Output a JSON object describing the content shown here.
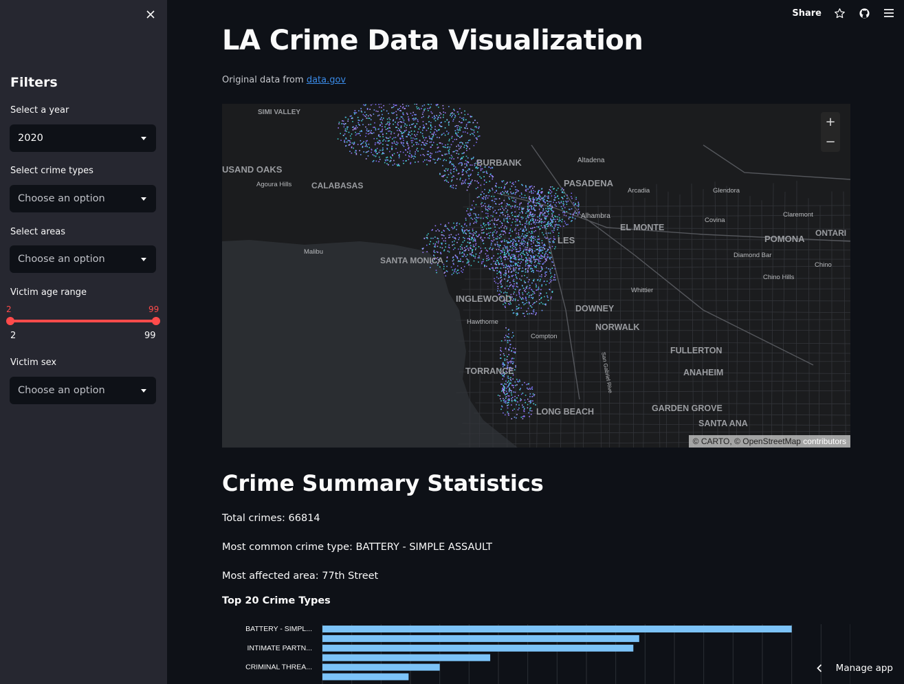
{
  "sidebar": {
    "heading": "Filters",
    "year_label": "Select a year",
    "year_value": "2020",
    "crime_types_label": "Select crime types",
    "crime_types_placeholder": "Choose an option",
    "areas_label": "Select areas",
    "areas_placeholder": "Choose an option",
    "age_label": "Victim age range",
    "age_low": "2",
    "age_high": "99",
    "age_min": "2",
    "age_max": "99",
    "sex_label": "Victim sex",
    "sex_placeholder": "Choose an option"
  },
  "toolbar": {
    "share_label": "Share"
  },
  "main": {
    "title": "LA Crime Data Visualization",
    "source_prefix": "Original data from ",
    "source_link": "data.gov",
    "stats_heading": "Crime Summary Statistics",
    "total_crimes": "Total crimes: 66814",
    "most_common": "Most common crime type: BATTERY - SIMPLE ASSAULT",
    "most_affected": "Most affected area: 77th Street",
    "chart_title": "Top 20 Crime Types"
  },
  "map": {
    "zoom_in": "+",
    "zoom_out": "−",
    "attribution_1": "© CARTO",
    "attribution_2": "© OpenStreetMap",
    "attribution_3": "contributors",
    "places": [
      "SIMI VALLEY",
      "USAND OAKS",
      "Agoura Hills",
      "CALABASAS",
      "BURBANK",
      "Altadena",
      "PASADENA",
      "Arcadia",
      "Glendora",
      "Claremont",
      "Alhambra",
      "EL MONTE",
      "Covina",
      "POMONA",
      "ONTARI",
      "LES",
      "Malibu",
      "SANTA MONICA",
      "Diamond Bar",
      "Chino",
      "Chino Hills",
      "Whittier",
      "INGLEWOOD",
      "DOWNEY",
      "Hawthorne",
      "NORWALK",
      "Compton",
      "FULLERTON",
      "TORRANCE",
      "ANAHEIM",
      "LONG BEACH",
      "GARDEN GROVE",
      "SANTA ANA",
      "San Gabriel Rive"
    ]
  },
  "chart_data": {
    "type": "bar",
    "orientation": "horizontal",
    "title": "Top 20 Crime Types",
    "categories": [
      "BATTERY - SIMPL...",
      "",
      "INTIMATE PARTN...",
      "",
      "CRIMINAL THREA...",
      ""
    ],
    "values": [
      8000,
      5400,
      5300,
      2860,
      2000,
      1470
    ],
    "xlim": [
      0,
      9000
    ],
    "color": "#7cc3f8"
  },
  "footer": {
    "manage_label": "Manage app"
  }
}
